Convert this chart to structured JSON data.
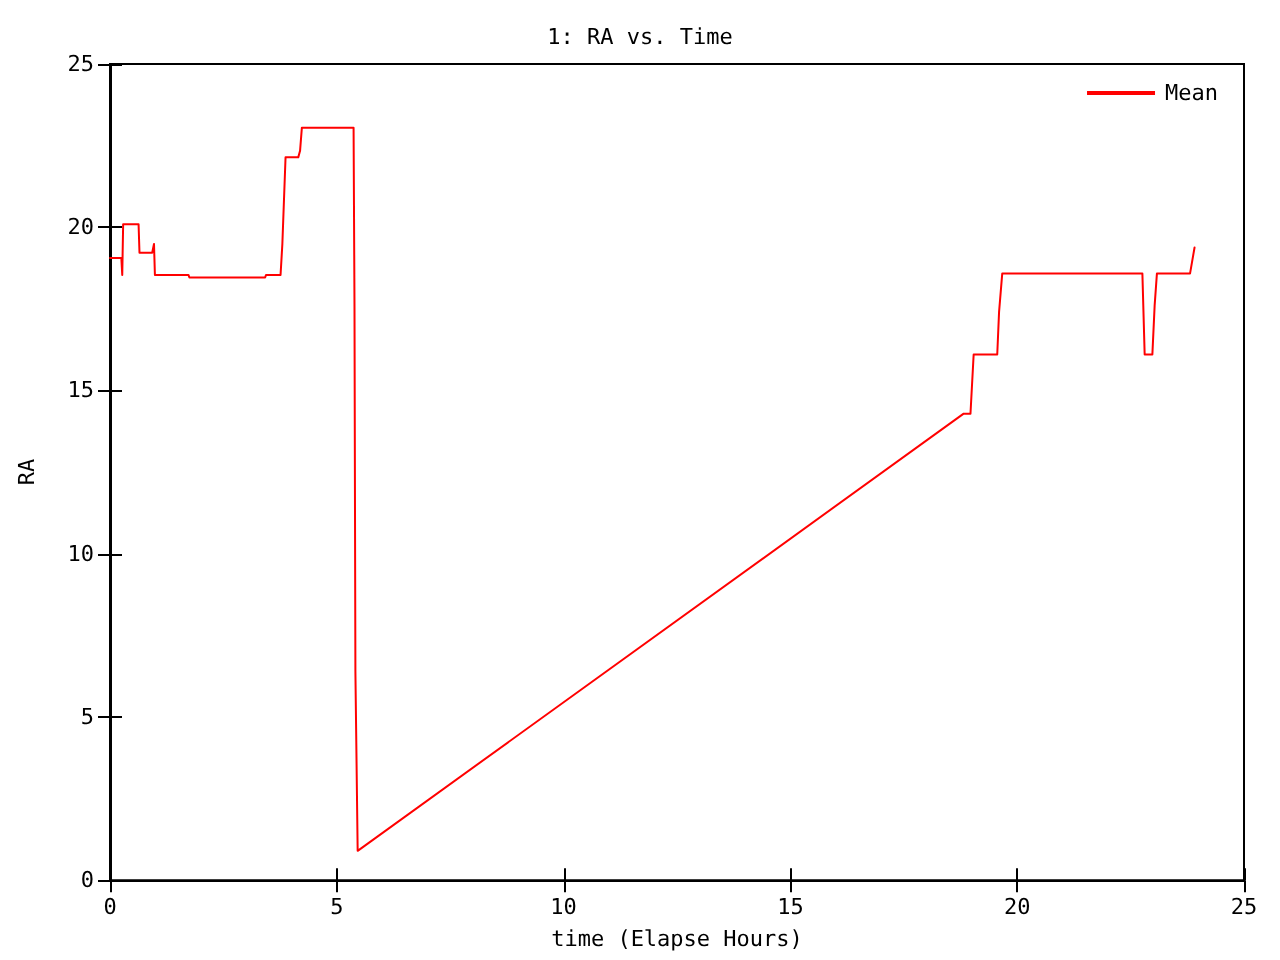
{
  "chart_data": {
    "type": "line",
    "title": "1: RA vs. Time",
    "xlabel": "time (Elapse Hours)",
    "ylabel": "RA",
    "series": [
      {
        "name": "Mean",
        "color": "#ff0000",
        "x": [
          0,
          0.25,
          0.27,
          0.29,
          0.63,
          0.65,
          0.93,
          0.97,
          0.99,
          1.73,
          1.75,
          3.42,
          3.44,
          3.76,
          3.8,
          3.87,
          4.15,
          4.19,
          4.23,
          5.37,
          5.39,
          5.41,
          5.43,
          5.46,
          18.82,
          18.97,
          19.04,
          19.56,
          19.6,
          19.67,
          22.76,
          22.81,
          22.98,
          23.03,
          23.08,
          23.81,
          23.91
        ],
        "values": [
          19.06,
          19.06,
          18.54,
          20.09,
          20.09,
          19.22,
          19.22,
          19.49,
          18.54,
          18.54,
          18.46,
          18.46,
          18.54,
          18.54,
          19.49,
          22.14,
          22.14,
          22.34,
          23.05,
          23.05,
          17.57,
          6.4,
          6.4,
          0.9,
          14.29,
          14.29,
          16.1,
          16.1,
          17.4,
          18.58,
          18.58,
          16.1,
          16.1,
          17.6,
          18.58,
          18.58,
          19.38
        ]
      }
    ],
    "xlim": [
      0,
      25
    ],
    "xticks": [
      0,
      5,
      10,
      15,
      20,
      25
    ],
    "ylim": [
      0,
      25
    ],
    "yticks": [
      0,
      5,
      10,
      15,
      20,
      25
    ],
    "grid": false,
    "legend": "top right",
    "marker": "none",
    "line_style": "solid"
  }
}
